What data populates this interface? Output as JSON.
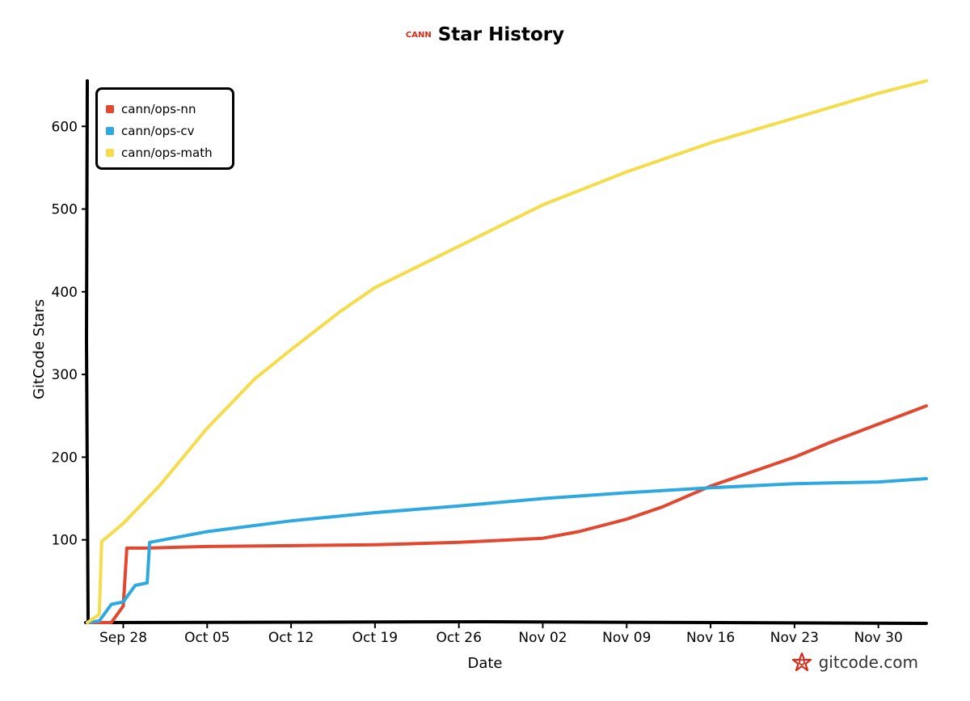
{
  "header": {
    "logo_text": "CANN",
    "title": "Star History"
  },
  "watermark": {
    "text": "gitcode.com",
    "icon": "gitcode-logo-icon"
  },
  "colors": {
    "cann/ops-nn": "#e2472f",
    "cann/ops-cv": "#2ea8e0",
    "cann/ops-math": "#f5dc4a",
    "axis": "#000000",
    "brand_red": "#d62a1a"
  },
  "chart_data": {
    "type": "line",
    "title": "Star History",
    "xlabel": "Date",
    "ylabel": "GitCode Stars",
    "x_ticks": [
      "Sep 28",
      "Oct 05",
      "Oct 12",
      "Oct 19",
      "Oct 26",
      "Nov 02",
      "Nov 09",
      "Nov 16",
      "Nov 23",
      "Nov 30"
    ],
    "y_ticks": [
      100,
      200,
      300,
      400,
      500,
      600
    ],
    "x_range": [
      "Sep 25",
      "Dec 04"
    ],
    "ylim": [
      0,
      655
    ],
    "grid": false,
    "legend_position": "top-left",
    "series": [
      {
        "name": "cann/ops-nn",
        "points": [
          [
            "Sep 25",
            0
          ],
          [
            "Sep 27",
            0
          ],
          [
            "Sep 27.5",
            10
          ],
          [
            "Sep 28",
            20
          ],
          [
            "Sep 28.3",
            90
          ],
          [
            "Sep 30",
            90
          ],
          [
            "Oct 05",
            92
          ],
          [
            "Oct 12",
            93
          ],
          [
            "Oct 19",
            94
          ],
          [
            "Oct 26",
            97
          ],
          [
            "Nov 02",
            102
          ],
          [
            "Nov 05",
            110
          ],
          [
            "Nov 09",
            125
          ],
          [
            "Nov 12",
            140
          ],
          [
            "Nov 16",
            165
          ],
          [
            "Nov 19",
            180
          ],
          [
            "Nov 23",
            200
          ],
          [
            "Nov 26",
            218
          ],
          [
            "Nov 30",
            240
          ],
          [
            "Dec 04",
            262
          ]
        ]
      },
      {
        "name": "cann/ops-cv",
        "points": [
          [
            "Sep 25",
            0
          ],
          [
            "Sep 26",
            2
          ],
          [
            "Sep 27",
            22
          ],
          [
            "Sep 28",
            25
          ],
          [
            "Sep 29",
            45
          ],
          [
            "Sep 30",
            48
          ],
          [
            "Sep 30.2",
            97
          ],
          [
            "Oct 05",
            110
          ],
          [
            "Oct 12",
            123
          ],
          [
            "Oct 19",
            133
          ],
          [
            "Oct 26",
            141
          ],
          [
            "Nov 02",
            150
          ],
          [
            "Nov 09",
            157
          ],
          [
            "Nov 16",
            163
          ],
          [
            "Nov 23",
            168
          ],
          [
            "Nov 30",
            170
          ],
          [
            "Dec 04",
            174
          ]
        ]
      },
      {
        "name": "cann/ops-math",
        "points": [
          [
            "Sep 25",
            0
          ],
          [
            "Sep 26",
            10
          ],
          [
            "Sep 26.2",
            98
          ],
          [
            "Sep 28",
            120
          ],
          [
            "Oct 01",
            165
          ],
          [
            "Oct 05",
            235
          ],
          [
            "Oct 09",
            295
          ],
          [
            "Oct 12",
            330
          ],
          [
            "Oct 16",
            375
          ],
          [
            "Oct 19",
            405
          ],
          [
            "Oct 26",
            455
          ],
          [
            "Nov 02",
            505
          ],
          [
            "Nov 09",
            545
          ],
          [
            "Nov 16",
            580
          ],
          [
            "Nov 23",
            610
          ],
          [
            "Nov 30",
            640
          ],
          [
            "Dec 04",
            655
          ]
        ]
      }
    ]
  }
}
